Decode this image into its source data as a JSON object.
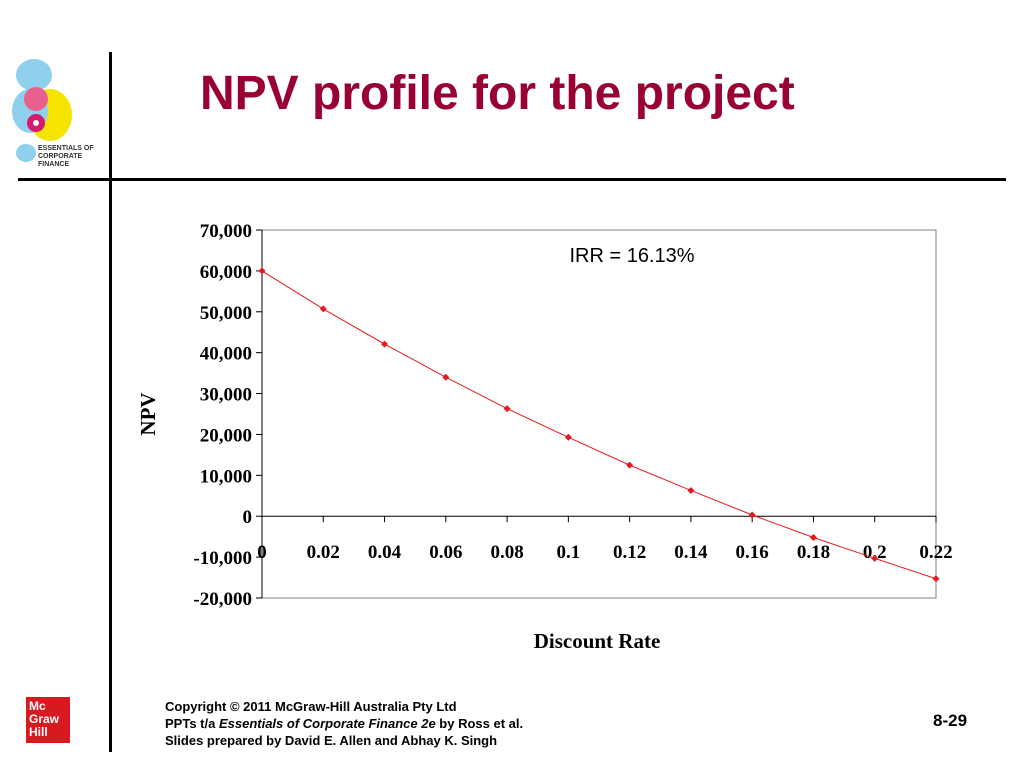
{
  "slide": {
    "title": "NPV profile for the project",
    "logo_text_line1": "ESSENTIALS OF",
    "logo_text_line2": "CORPORATE FINANCE",
    "mh_logo_lines": [
      "Mc",
      "Graw",
      "Hill"
    ],
    "footer": {
      "line1": "Copyright © 2011 McGraw-Hill Australia Pty Ltd",
      "line2_prefix": "PPTs t/a ",
      "line2_italic": "Essentials of Corporate Finance 2e",
      "line2_suffix": " by Ross et al.",
      "line3": "Slides prepared by David E. Allen and Abhay K. Singh"
    },
    "page_number": "8-29"
  },
  "chart_data": {
    "type": "scatter",
    "title": "",
    "xlabel": "Discount Rate",
    "ylabel": "NPV",
    "annotation": "IRR = 16.13%",
    "xlim": [
      0,
      0.22
    ],
    "ylim": [
      -20000,
      70000
    ],
    "x_ticks": [
      "0",
      "0.02",
      "0.04",
      "0.06",
      "0.08",
      "0.1",
      "0.12",
      "0.14",
      "0.16",
      "0.18",
      "0.2",
      "0.22"
    ],
    "y_ticks": [
      "70,000",
      "60,000",
      "50,000",
      "40,000",
      "30,000",
      "20,000",
      "10,000",
      "0",
      "-10,000",
      "-20,000"
    ],
    "series": [
      {
        "color": "#e8191e",
        "x": [
          0,
          0.02,
          0.04,
          0.06,
          0.08,
          0.1,
          0.12,
          0.14,
          0.16,
          0.18,
          0.2,
          0.22
        ],
        "y": [
          60000,
          50700,
          42100,
          34000,
          26300,
          19300,
          12500,
          6300,
          300,
          -5200,
          -10300,
          -15300
        ]
      }
    ],
    "grid": false,
    "legend": "none"
  }
}
